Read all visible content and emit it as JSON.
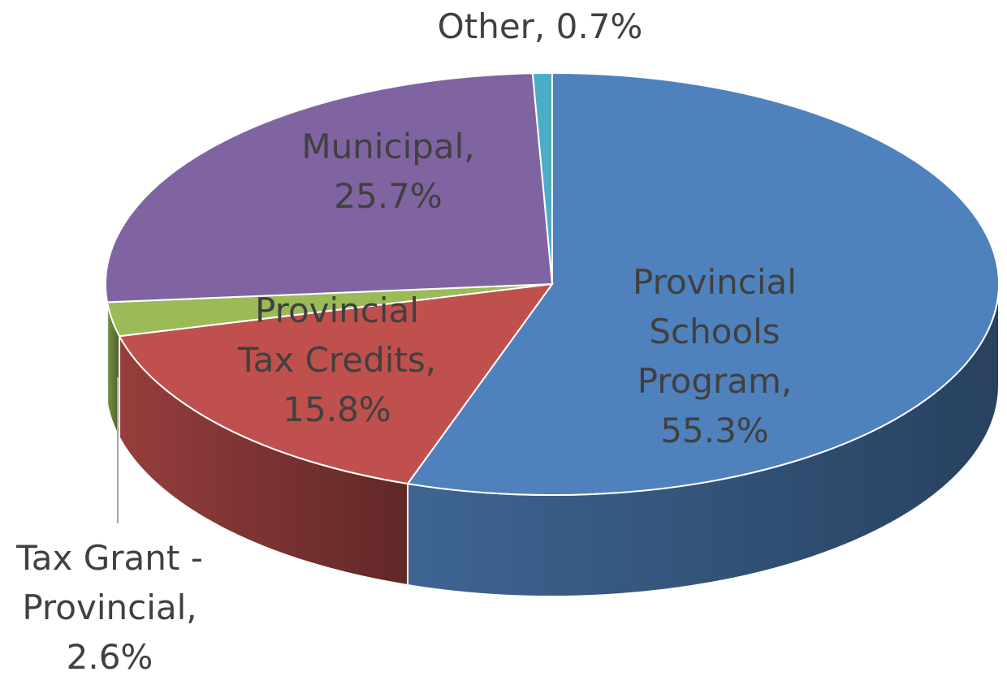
{
  "chart_data": {
    "type": "pie",
    "labels": [
      "Provincial Schools Program, 55.3%",
      "Provincial Tax Credits, 15.8%",
      "Tax Grant - Provincial, 2.6%",
      "Municipal, 25.7%",
      "Other, 0.7%"
    ],
    "values": [
      55.3,
      15.8,
      2.6,
      25.7,
      0.7
    ],
    "colors": [
      "#4f81bd",
      "#c0504d",
      "#9bbb59",
      "#8064a2",
      "#4bacc6"
    ]
  }
}
